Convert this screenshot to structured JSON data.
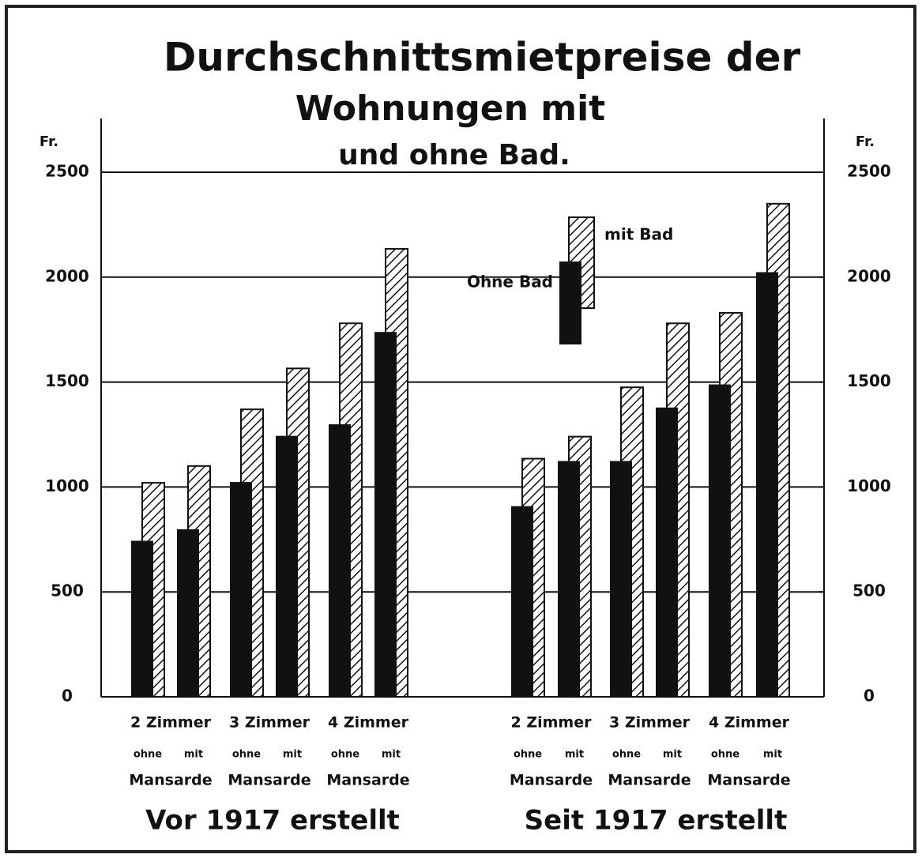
{
  "chart_data": {
    "type": "bar",
    "title": [
      "Durchschnittsmietpreise der",
      "Wohnungen mit",
      "und ohne Bad."
    ],
    "ylabel": "Fr.",
    "y2label": "Fr.",
    "ylim": [
      0,
      2500
    ],
    "yticks": [
      0,
      500,
      1000,
      1500,
      2000,
      2500
    ],
    "y2lim": [
      0,
      2500
    ],
    "y2ticks": [
      0,
      500,
      1000,
      1500,
      2000,
      2500
    ],
    "grid": true,
    "groups": [
      "Vor 1917 erstellt",
      "Seit 1917 erstellt"
    ],
    "rooms": [
      {
        "label": "2 Zimmer",
        "unit": "Mansarde"
      },
      {
        "label": "3 Zimmer",
        "unit": "Mansarde"
      },
      {
        "label": "4 Zimmer",
        "unit": "Mansarde"
      },
      {
        "label": "2 Zimmer",
        "unit": "Mansarde"
      },
      {
        "label": "3 Zimmer",
        "unit": "Mansarde"
      },
      {
        "label": "4 Zimmer",
        "unit": "Mansarde"
      }
    ],
    "categories": [
      "ohne",
      "mit",
      "ohne",
      "mit",
      "ohne",
      "mit",
      "ohne",
      "mit",
      "ohne",
      "mit",
      "ohne",
      "mit"
    ],
    "series": [
      {
        "name": "Ohne Bad",
        "color": "#111111",
        "pattern": "solid",
        "values": [
          740,
          795,
          1020,
          1240,
          1295,
          1735,
          905,
          1120,
          1120,
          1375,
          1485,
          2020
        ]
      },
      {
        "name": "mit Bad",
        "color": "#111111",
        "pattern": "hatched",
        "values": [
          1020,
          1100,
          1370,
          1565,
          1780,
          2135,
          1135,
          1240,
          1475,
          1780,
          1830,
          2350
        ]
      }
    ]
  }
}
